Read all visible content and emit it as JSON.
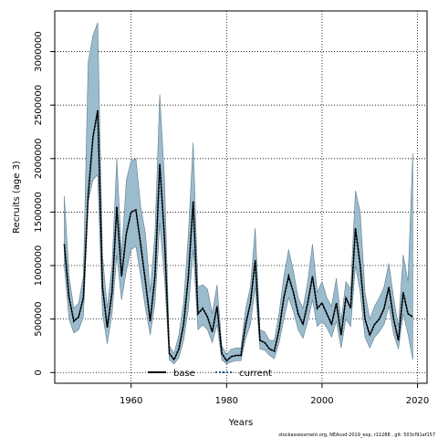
{
  "chart_data": {
    "type": "area",
    "title": "",
    "xlabel": "Years",
    "ylabel": "Recruits (age 3)",
    "xlim": [
      1944,
      2022
    ],
    "ylim": [
      -100000,
      3380000
    ],
    "xticks": [
      1960,
      1980,
      2000,
      2020
    ],
    "yticks": [
      0,
      500000,
      1000000,
      1500000,
      2000000,
      2500000,
      3000000
    ],
    "grid": true,
    "legend_position": "bottom-center",
    "colors": {
      "band": "#9bbccd",
      "band_edge": "#5f7e8e",
      "line": "#000000"
    },
    "x": [
      1946,
      1947,
      1948,
      1949,
      1950,
      1951,
      1952,
      1953,
      1954,
      1955,
      1956,
      1957,
      1958,
      1959,
      1960,
      1961,
      1962,
      1963,
      1964,
      1965,
      1966,
      1967,
      1968,
      1969,
      1970,
      1971,
      1972,
      1973,
      1974,
      1975,
      1976,
      1977,
      1978,
      1979,
      1980,
      1981,
      1982,
      1983,
      1984,
      1985,
      1986,
      1987,
      1988,
      1989,
      1990,
      1991,
      1992,
      1993,
      1994,
      1995,
      1996,
      1997,
      1998,
      1999,
      2000,
      2001,
      2002,
      2003,
      2004,
      2005,
      2006,
      2007,
      2008,
      2009,
      2010,
      2011,
      2012,
      2013,
      2014,
      2015,
      2016,
      2017,
      2018,
      2019
    ],
    "series": [
      {
        "name": "base",
        "line_style": "solid",
        "values": [
          1200000,
          700000,
          480000,
          520000,
          700000,
          1650000,
          2200000,
          2450000,
          800000,
          420000,
          750000,
          1550000,
          900000,
          1300000,
          1500000,
          1520000,
          1200000,
          850000,
          480000,
          900000,
          1950000,
          1250000,
          180000,
          120000,
          220000,
          450000,
          900000,
          1600000,
          550000,
          600000,
          520000,
          380000,
          620000,
          180000,
          110000,
          150000,
          160000,
          160000,
          450000,
          650000,
          1050000,
          300000,
          280000,
          220000,
          200000,
          400000,
          700000,
          900000,
          750000,
          550000,
          450000,
          650000,
          900000,
          600000,
          650000,
          550000,
          450000,
          650000,
          350000,
          700000,
          600000,
          1350000,
          1000000,
          500000,
          350000,
          450000,
          500000,
          600000,
          800000,
          500000,
          300000,
          750000,
          550000,
          520000
        ]
      },
      {
        "name": "current",
        "line_style": "dotted",
        "values": [
          1200000,
          700000,
          480000,
          520000,
          700000,
          1650000,
          2200000,
          2450000,
          800000,
          420000,
          750000,
          1550000,
          900000,
          1300000,
          1500000,
          1520000,
          1200000,
          850000,
          480000,
          900000,
          1950000,
          1250000,
          180000,
          120000,
          220000,
          450000,
          900000,
          1600000,
          550000,
          600000,
          520000,
          380000,
          620000,
          180000,
          110000,
          150000,
          160000,
          160000,
          450000,
          650000,
          1050000,
          300000,
          280000,
          220000,
          200000,
          400000,
          700000,
          900000,
          750000,
          550000,
          450000,
          650000,
          900000,
          600000,
          650000,
          550000,
          450000,
          650000,
          350000,
          700000,
          600000,
          1350000,
          1000000,
          500000,
          350000,
          450000,
          500000,
          600000,
          800000,
          500000,
          300000,
          750000,
          550000,
          520000
        ]
      }
    ],
    "band": {
      "upper": [
        1650000,
        900000,
        600000,
        650000,
        900000,
        2900000,
        3150000,
        3270000,
        1100000,
        600000,
        1000000,
        2000000,
        1100000,
        1800000,
        1980000,
        2000000,
        1550000,
        1300000,
        750000,
        1300000,
        2600000,
        1800000,
        250000,
        180000,
        350000,
        650000,
        1300000,
        2150000,
        800000,
        820000,
        780000,
        550000,
        820000,
        250000,
        170000,
        220000,
        230000,
        230000,
        600000,
        800000,
        1350000,
        400000,
        380000,
        300000,
        300000,
        550000,
        900000,
        1150000,
        950000,
        700000,
        600000,
        850000,
        1200000,
        750000,
        850000,
        700000,
        620000,
        880000,
        480000,
        850000,
        780000,
        1700000,
        1500000,
        750000,
        500000,
        620000,
        700000,
        800000,
        1020000,
        700000,
        430000,
        1100000,
        850000,
        2050000
      ],
      "lower": [
        1000000,
        500000,
        370000,
        400000,
        520000,
        1600000,
        1800000,
        1850000,
        550000,
        270000,
        550000,
        1100000,
        680000,
        950000,
        1150000,
        1180000,
        900000,
        600000,
        350000,
        650000,
        1400000,
        880000,
        120000,
        80000,
        140000,
        300000,
        600000,
        1150000,
        400000,
        450000,
        400000,
        280000,
        450000,
        120000,
        80000,
        100000,
        110000,
        110000,
        320000,
        450000,
        800000,
        220000,
        210000,
        160000,
        130000,
        280000,
        500000,
        700000,
        570000,
        400000,
        320000,
        480000,
        680000,
        430000,
        480000,
        420000,
        330000,
        480000,
        230000,
        500000,
        430000,
        1000000,
        750000,
        330000,
        230000,
        330000,
        380000,
        450000,
        620000,
        360000,
        220000,
        550000,
        360000,
        120000
      ]
    }
  },
  "footnote": "stockassessment.org, NEAcod-2019_exp, r11288 , git: 503cf91af157"
}
